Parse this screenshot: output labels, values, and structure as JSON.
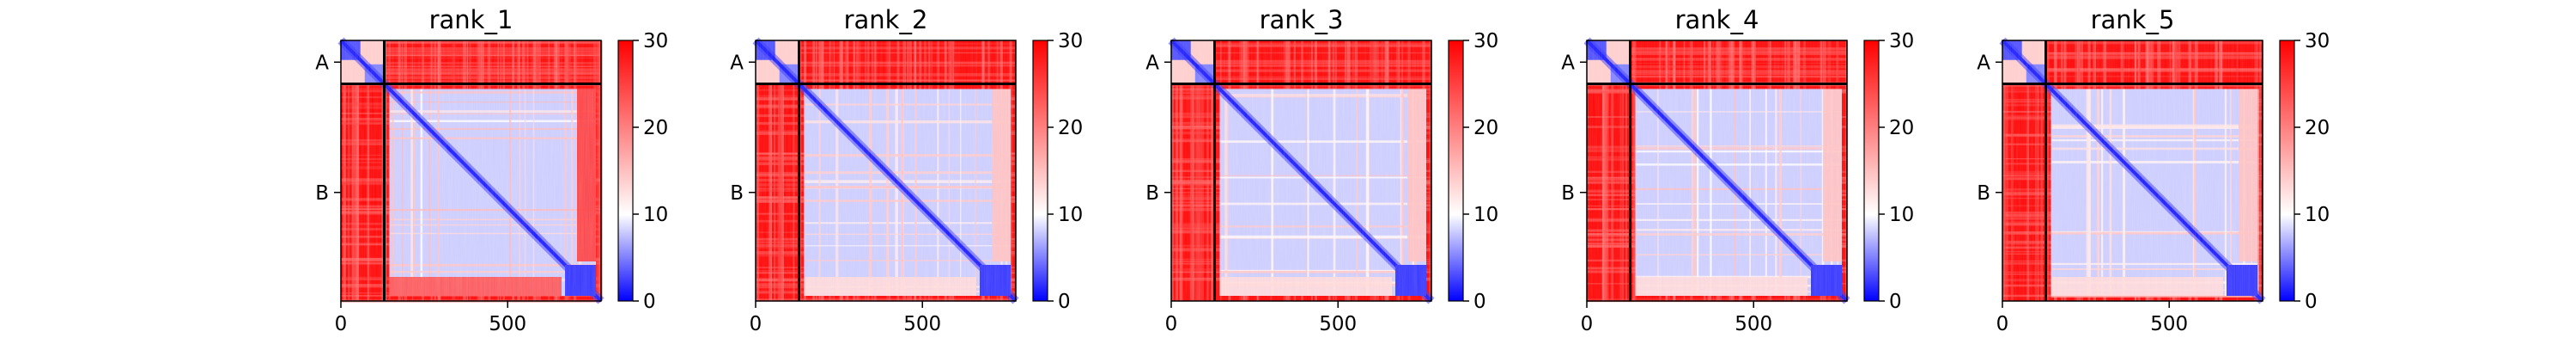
{
  "chart_data": [
    {
      "type": "heatmap",
      "title": "rank_1",
      "x_ticks": [
        0,
        500
      ],
      "y_ticks": [
        "A",
        "B"
      ],
      "colorbar_ticks": [
        0,
        10,
        20,
        30
      ],
      "colorbar_range": [
        0,
        30
      ],
      "chain_lengths": {
        "A": 130,
        "B": 650
      },
      "total_length": 780
    },
    {
      "type": "heatmap",
      "title": "rank_2",
      "x_ticks": [
        0,
        500
      ],
      "y_ticks": [
        "A",
        "B"
      ],
      "colorbar_ticks": [
        0,
        10,
        20,
        30
      ],
      "colorbar_range": [
        0,
        30
      ],
      "chain_lengths": {
        "A": 130,
        "B": 650
      },
      "total_length": 780
    },
    {
      "type": "heatmap",
      "title": "rank_3",
      "x_ticks": [
        0,
        500
      ],
      "y_ticks": [
        "A",
        "B"
      ],
      "colorbar_ticks": [
        0,
        10,
        20,
        30
      ],
      "colorbar_range": [
        0,
        30
      ],
      "chain_lengths": {
        "A": 130,
        "B": 650
      },
      "total_length": 780
    },
    {
      "type": "heatmap",
      "title": "rank_4",
      "x_ticks": [
        0,
        500
      ],
      "y_ticks": [
        "A",
        "B"
      ],
      "colorbar_ticks": [
        0,
        10,
        20,
        30
      ],
      "colorbar_range": [
        0,
        30
      ],
      "chain_lengths": {
        "A": 130,
        "B": 650
      },
      "total_length": 780
    },
    {
      "type": "heatmap",
      "title": "rank_5",
      "x_ticks": [
        0,
        500
      ],
      "y_ticks": [
        "A",
        "B"
      ],
      "colorbar_ticks": [
        0,
        10,
        20,
        30
      ],
      "colorbar_range": [
        0,
        30
      ],
      "chain_lengths": {
        "A": 130,
        "B": 650
      },
      "total_length": 780
    }
  ],
  "colors": {
    "low": "#0000ff",
    "mid": "#ffffff",
    "high": "#ff0000",
    "axis": "#000000"
  }
}
